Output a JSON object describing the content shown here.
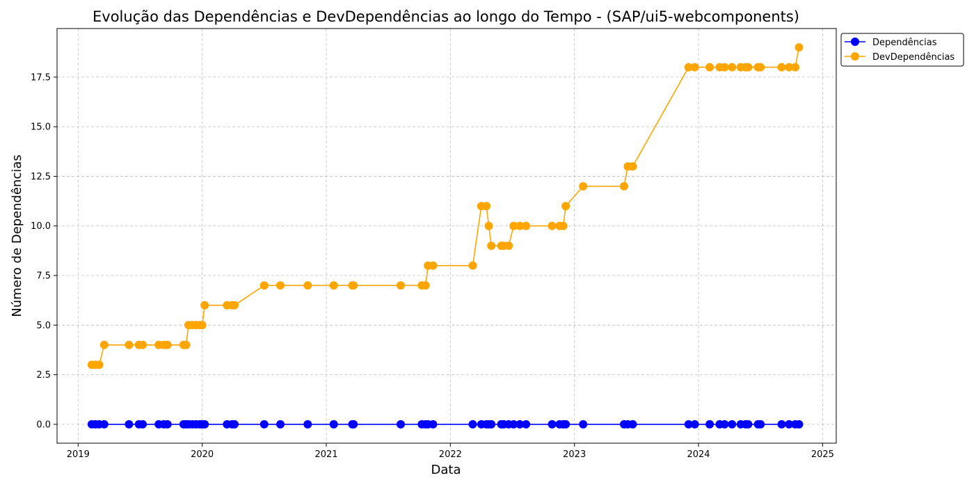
{
  "chart_data": {
    "type": "line",
    "title": "Evolução das Dependências e DevDependências ao longo do Tempo - (SAP/ui5-webcomponents)",
    "xlabel": "Data",
    "ylabel": "Número de Dependências",
    "xlim": [
      2018.83,
      2025.11
    ],
    "ylim": [
      -0.95,
      19.95
    ],
    "x_ticks": [
      2019,
      2020,
      2021,
      2022,
      2023,
      2024,
      2025
    ],
    "x_tick_labels": [
      "2019",
      "2020",
      "2021",
      "2022",
      "2023",
      "2024",
      "2025"
    ],
    "y_ticks": [
      0,
      2.5,
      5,
      7.5,
      10,
      12.5,
      15,
      17.5
    ],
    "y_tick_labels": [
      "0.0",
      "2.5",
      "5.0",
      "7.5",
      "10.0",
      "12.5",
      "15.0",
      "17.5"
    ],
    "grid": true,
    "legend_position": "outside-top-right",
    "x": [
      2019.11,
      2019.14,
      2019.17,
      2019.21,
      2019.41,
      2019.49,
      2019.52,
      2019.65,
      2019.69,
      2019.72,
      2019.85,
      2019.87,
      2019.89,
      2019.92,
      2019.95,
      2019.98,
      2020.0,
      2020.02,
      2020.2,
      2020.24,
      2020.26,
      2020.5,
      2020.63,
      2020.85,
      2021.06,
      2021.21,
      2021.22,
      2021.6,
      2021.77,
      2021.8,
      2021.82,
      2021.86,
      2022.18,
      2022.25,
      2022.29,
      2022.31,
      2022.33,
      2022.41,
      2022.43,
      2022.47,
      2022.51,
      2022.56,
      2022.61,
      2022.82,
      2022.88,
      2022.91,
      2022.93,
      2023.07,
      2023.4,
      2023.43,
      2023.47,
      2023.92,
      2023.97,
      2024.09,
      2024.17,
      2024.21,
      2024.27,
      2024.34,
      2024.38,
      2024.4,
      2024.48,
      2024.5,
      2024.67,
      2024.73,
      2024.78,
      2024.81
    ],
    "series": [
      {
        "name": "Dependências",
        "color": "#0000ff",
        "values": [
          0,
          0,
          0,
          0,
          0,
          0,
          0,
          0,
          0,
          0,
          0,
          0,
          0,
          0,
          0,
          0,
          0,
          0,
          0,
          0,
          0,
          0,
          0,
          0,
          0,
          0,
          0,
          0,
          0,
          0,
          0,
          0,
          0,
          0,
          0,
          0,
          0,
          0,
          0,
          0,
          0,
          0,
          0,
          0,
          0,
          0,
          0,
          0,
          0,
          0,
          0,
          0,
          0,
          0,
          0,
          0,
          0,
          0,
          0,
          0,
          0,
          0,
          0,
          0,
          0,
          0
        ]
      },
      {
        "name": "DevDependências",
        "color": "#ffa500",
        "values": [
          3,
          3,
          3,
          4,
          4,
          4,
          4,
          4,
          4,
          4,
          4,
          4,
          5,
          5,
          5,
          5,
          5,
          6,
          6,
          6,
          6,
          7,
          7,
          7,
          7,
          7,
          7,
          7,
          7,
          7,
          8,
          8,
          8,
          11,
          11,
          10,
          9,
          9,
          9,
          9,
          10,
          10,
          10,
          10,
          10,
          10,
          11,
          12,
          12,
          13,
          13,
          18,
          18,
          18,
          18,
          18,
          18,
          18,
          18,
          18,
          18,
          18,
          18,
          18,
          18,
          19
        ]
      }
    ]
  }
}
